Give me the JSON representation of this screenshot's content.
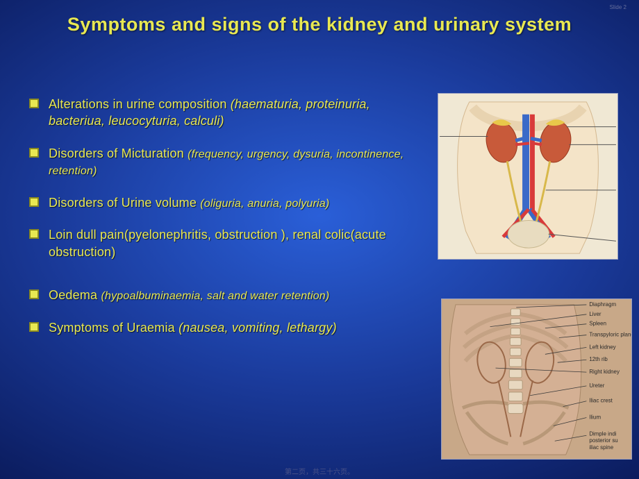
{
  "slide_label": "Slide 2",
  "title": "Symptoms and signs of the kidney and urinary system",
  "bullets": [
    {
      "main": "Alterations in urine composition ",
      "detail": "(haematuria, proteinuria, bacteriua, leucocyturia, calculi)",
      "detail_style": "detail"
    },
    {
      "main": "Disorders of Micturation ",
      "detail": "(frequency, urgency, dysuria, incontinence, retention)",
      "detail_style": "detail-sm"
    },
    {
      "main": "Disorders of Urine volume ",
      "detail": "(oliguria, anuria, polyuria)",
      "detail_style": "detail-sm"
    },
    {
      "main": "Loin dull pain(pyelonephritis, obstruction ), renal colic(acute obstruction)",
      "detail": "",
      "detail_style": "detail",
      "gap_after": true
    },
    {
      "main": "Oedema  ",
      "detail": "(hypoalbuminaemia, salt and water retention)",
      "detail_style": "detail-sm"
    },
    {
      "main": "Symptoms of Uraemia  ",
      "detail": "(nausea, vomiting, lethargy)",
      "detail_style": "detail"
    }
  ],
  "footer": "第二页，共三十六页。",
  "colors": {
    "accent": "#e8e852",
    "bullet_border": "#8a8a20",
    "bg_center": "#2a5fd8",
    "bg_edge": "#020820",
    "kidney": "#c85a3a",
    "vein": "#3a6ac8",
    "artery": "#d83a3a",
    "skin": "#e8d4b0"
  },
  "anatomy_labels": {
    "bottom": [
      "Diaphragm",
      "Liver",
      "Spleen",
      "Transpyloric plane",
      "Left kidney",
      "12th rib",
      "Right kidney",
      "Ureter",
      "Iliac crest",
      "Ilium",
      "Dimple indicating posterior superior iliac spine"
    ]
  }
}
